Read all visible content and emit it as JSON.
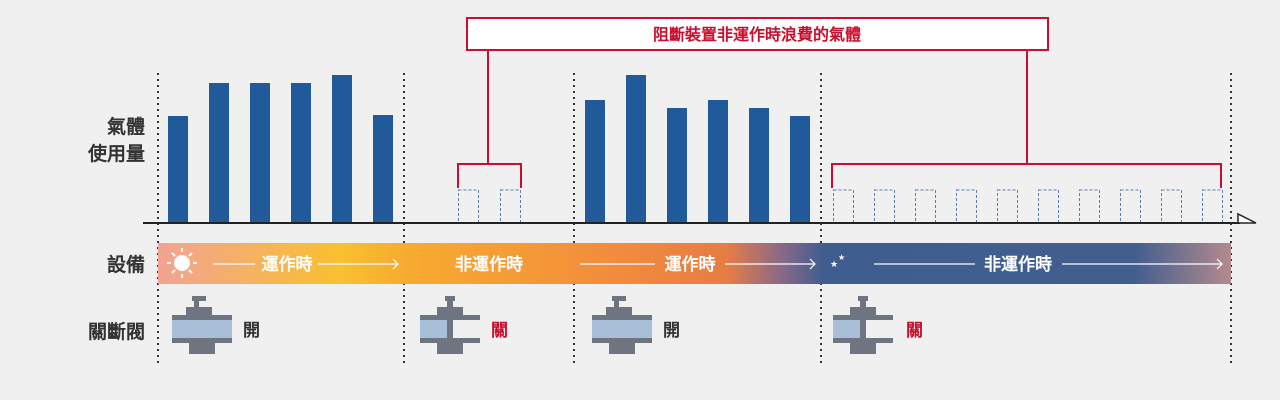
{
  "callout": {
    "text": "阻斷裝置非運作時浪費的氣體"
  },
  "row_labels": {
    "gas_usage_line1": "氣體",
    "gas_usage_line2": "使用量",
    "equipment": "設備",
    "valve": "關斷閥"
  },
  "phases": [
    {
      "label": "運作時",
      "state": "operating",
      "icon": "sun-icon",
      "valve_state": "open",
      "valve_label": "開",
      "gas_usage": [
        107,
        140,
        140,
        140,
        148,
        108
      ]
    },
    {
      "label": "非運作時",
      "state": "idle",
      "icon": "",
      "valve_state": "closed",
      "valve_label": "關",
      "wasted_gas_bars": 2
    },
    {
      "label": "運作時",
      "state": "operating",
      "icon": "",
      "valve_state": "open",
      "valve_label": "開",
      "gas_usage": [
        123,
        148,
        115,
        123,
        115,
        107
      ]
    },
    {
      "label": "非運作時",
      "state": "idle",
      "icon": "moon-stars-icon",
      "valve_state": "closed",
      "valve_label": "關",
      "wasted_gas_bars": 10
    }
  ],
  "colors": {
    "bar": "#215a9b",
    "wasted_bar": "#5a7fb0",
    "callout": "#c8102e",
    "valve_metal": "#6e7480",
    "valve_fluid": "#a9bfd8",
    "open_text": "#333333",
    "closed_text": "#c8102e"
  }
}
